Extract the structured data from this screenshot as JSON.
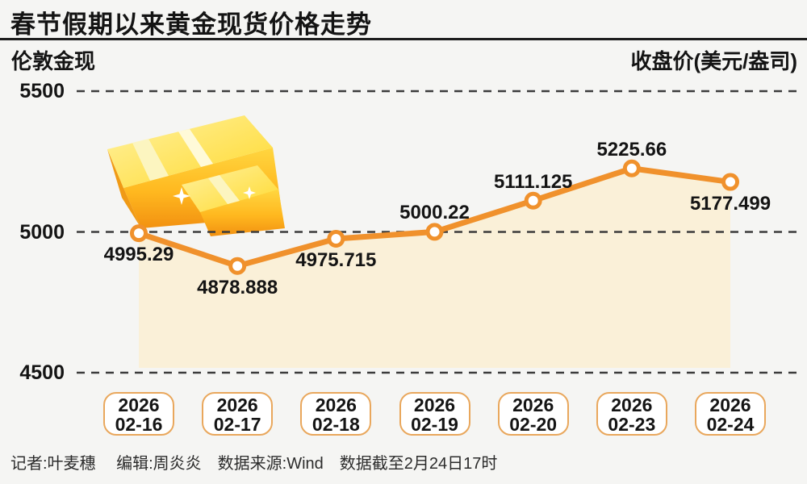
{
  "header": {
    "title": "春节假期以来黄金现货价格走势"
  },
  "footer": {
    "credits": "记者:叶麦穗　 编辑:周炎炎　数据来源:Wind　数据截至2月24日17时"
  },
  "chart_data": {
    "type": "line",
    "title": "春节假期以来黄金现货价格走势",
    "series_name": "伦敦金现",
    "ylabel": "收盘价(美元/盎司)",
    "categories": [
      [
        "2026",
        "02-16"
      ],
      [
        "2026",
        "02-17"
      ],
      [
        "2026",
        "02-18"
      ],
      [
        "2026",
        "02-19"
      ],
      [
        "2026",
        "02-20"
      ],
      [
        "2026",
        "02-23"
      ],
      [
        "2026",
        "02-24"
      ]
    ],
    "values": [
      4995.29,
      4878.888,
      4975.715,
      5000.22,
      5111.125,
      5225.66,
      5177.499
    ],
    "value_labels": [
      "4995.29",
      "4878.888",
      "4975.715",
      "5000.22",
      "5111.125",
      "5225.66",
      "5177.499"
    ],
    "label_side": [
      "below",
      "below",
      "below",
      "above",
      "above",
      "above",
      "below"
    ],
    "yticks": [
      5500,
      5000,
      4500
    ],
    "ylim": [
      4500,
      5500
    ],
    "grid": "horizontal-dashed",
    "legend_position": "none",
    "area_fill": true,
    "colors": {
      "line": "#F0912C",
      "marker_fill": "#FFFFFF",
      "area": "#FAF0D8",
      "grid": "#3C3C3C",
      "pill_border": "#E9A75C",
      "text": "#141414",
      "background": "#F5F5F3"
    }
  }
}
